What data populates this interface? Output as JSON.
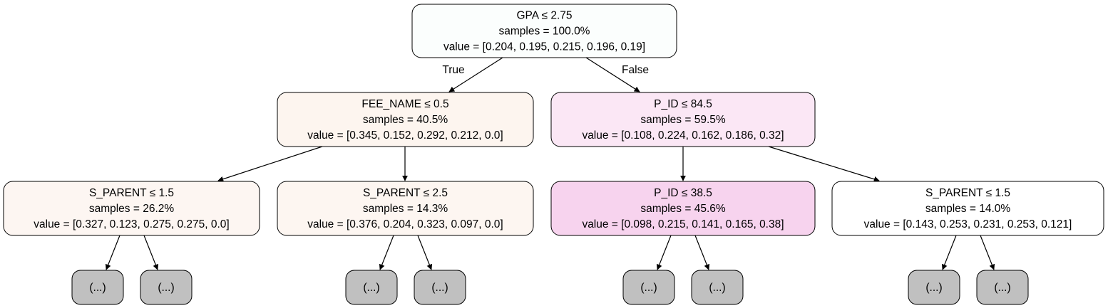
{
  "nodes": [
    {
      "id": "root",
      "lines": [
        "GPA ≤ 2.75",
        "samples = 100.0%",
        "value = [0.204, 0.195, 0.215, 0.196, 0.19]"
      ],
      "fill": "#fbfefd"
    },
    {
      "id": "n1",
      "lines": [
        "FEE_NAME ≤ 0.5",
        "samples = 40.5%",
        "value = [0.345, 0.152, 0.292, 0.212, 0.0]"
      ],
      "fill": "#fdf5ef"
    },
    {
      "id": "n2",
      "lines": [
        "P_ID ≤ 84.5",
        "samples = 59.5%",
        "value = [0.108, 0.224, 0.162, 0.186, 0.32]"
      ],
      "fill": "#fbe7f5"
    },
    {
      "id": "n3",
      "lines": [
        "S_PARENT ≤ 1.5",
        "samples = 26.2%",
        "value = [0.327, 0.123, 0.275, 0.275, 0.0]"
      ],
      "fill": "#fdf6f2"
    },
    {
      "id": "n4",
      "lines": [
        "S_PARENT ≤ 2.5",
        "samples = 14.3%",
        "value = [0.376, 0.204, 0.323, 0.097, 0.0]"
      ],
      "fill": "#fdf6f1"
    },
    {
      "id": "n5",
      "lines": [
        "P_ID ≤ 38.5",
        "samples = 45.6%",
        "value = [0.098, 0.215, 0.141, 0.165, 0.38]"
      ],
      "fill": "#f7d3ee"
    },
    {
      "id": "n6",
      "lines": [
        "S_PARENT ≤ 1.5",
        "samples = 14.0%",
        "value = [0.143, 0.253, 0.231, 0.253, 0.121]"
      ],
      "fill": "#ffffff"
    },
    {
      "id": "t1",
      "lines": [
        "(...)"
      ],
      "fill": "#c0c0c0"
    },
    {
      "id": "t2",
      "lines": [
        "(...)"
      ],
      "fill": "#c0c0c0"
    },
    {
      "id": "t3",
      "lines": [
        "(...)"
      ],
      "fill": "#c0c0c0"
    },
    {
      "id": "t4",
      "lines": [
        "(...)"
      ],
      "fill": "#c0c0c0"
    },
    {
      "id": "t5",
      "lines": [
        "(...)"
      ],
      "fill": "#c0c0c0"
    },
    {
      "id": "t6",
      "lines": [
        "(...)"
      ],
      "fill": "#c0c0c0"
    },
    {
      "id": "t7",
      "lines": [
        "(...)"
      ],
      "fill": "#c0c0c0"
    },
    {
      "id": "t8",
      "lines": [
        "(...)"
      ],
      "fill": "#c0c0c0"
    }
  ],
  "edges": [
    {
      "from": "root",
      "to": "n1",
      "label": "True"
    },
    {
      "from": "root",
      "to": "n2",
      "label": "False"
    },
    {
      "from": "n1",
      "to": "n3"
    },
    {
      "from": "n1",
      "to": "n4"
    },
    {
      "from": "n2",
      "to": "n5"
    },
    {
      "from": "n2",
      "to": "n6"
    },
    {
      "from": "n3",
      "to": "t1"
    },
    {
      "from": "n3",
      "to": "t2"
    },
    {
      "from": "n4",
      "to": "t3"
    },
    {
      "from": "n4",
      "to": "t4"
    },
    {
      "from": "n5",
      "to": "t5"
    },
    {
      "from": "n5",
      "to": "t6"
    },
    {
      "from": "n6",
      "to": "t7"
    },
    {
      "from": "n6",
      "to": "t8"
    }
  ]
}
